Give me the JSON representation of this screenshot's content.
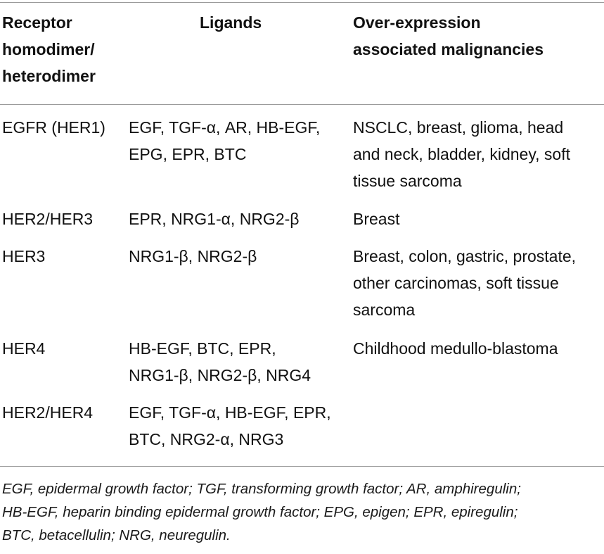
{
  "header": {
    "receptor": [
      "Receptor",
      "homodimer/",
      "heterodimer"
    ],
    "ligands": "Ligands",
    "malignancies": [
      "Over-expression",
      "associated malignancies"
    ]
  },
  "rows": [
    {
      "receptor": "EGFR (HER1)",
      "ligands": [
        "EGF, TGF-α, AR, HB-EGF,",
        "EPG, EPR, BTC"
      ],
      "malignancies": [
        "NSCLC, breast, glioma, head",
        "and neck, bladder, kidney, soft",
        "tissue sarcoma"
      ]
    },
    {
      "receptor": "HER2/HER3",
      "ligands": [
        "EPR, NRG1-α, NRG2-β"
      ],
      "malignancies": [
        "Breast"
      ]
    },
    {
      "receptor": "HER3",
      "ligands": [
        "NRG1-β, NRG2-β"
      ],
      "malignancies": [
        "Breast, colon, gastric, prostate,",
        "other carcinomas, soft tissue",
        "sarcoma"
      ]
    },
    {
      "receptor": "HER4",
      "ligands": [
        "HB-EGF, BTC, EPR,",
        "NRG1-β, NRG2-β, NRG4"
      ],
      "malignancies": [
        "Childhood medullo-blastoma"
      ]
    },
    {
      "receptor": "HER2/HER4",
      "ligands": [
        "EGF, TGF-α, HB-EGF, EPR,",
        "BTC, NRG2-α, NRG3"
      ],
      "malignancies": []
    }
  ],
  "footnote": [
    "EGF, epidermal growth factor; TGF, transforming growth factor; AR, amphiregulin;",
    "HB-EGF, heparin binding epidermal growth factor; EPG, epigen; EPR, epiregulin;",
    "BTC, betacellulin; NRG, neuregulin."
  ]
}
